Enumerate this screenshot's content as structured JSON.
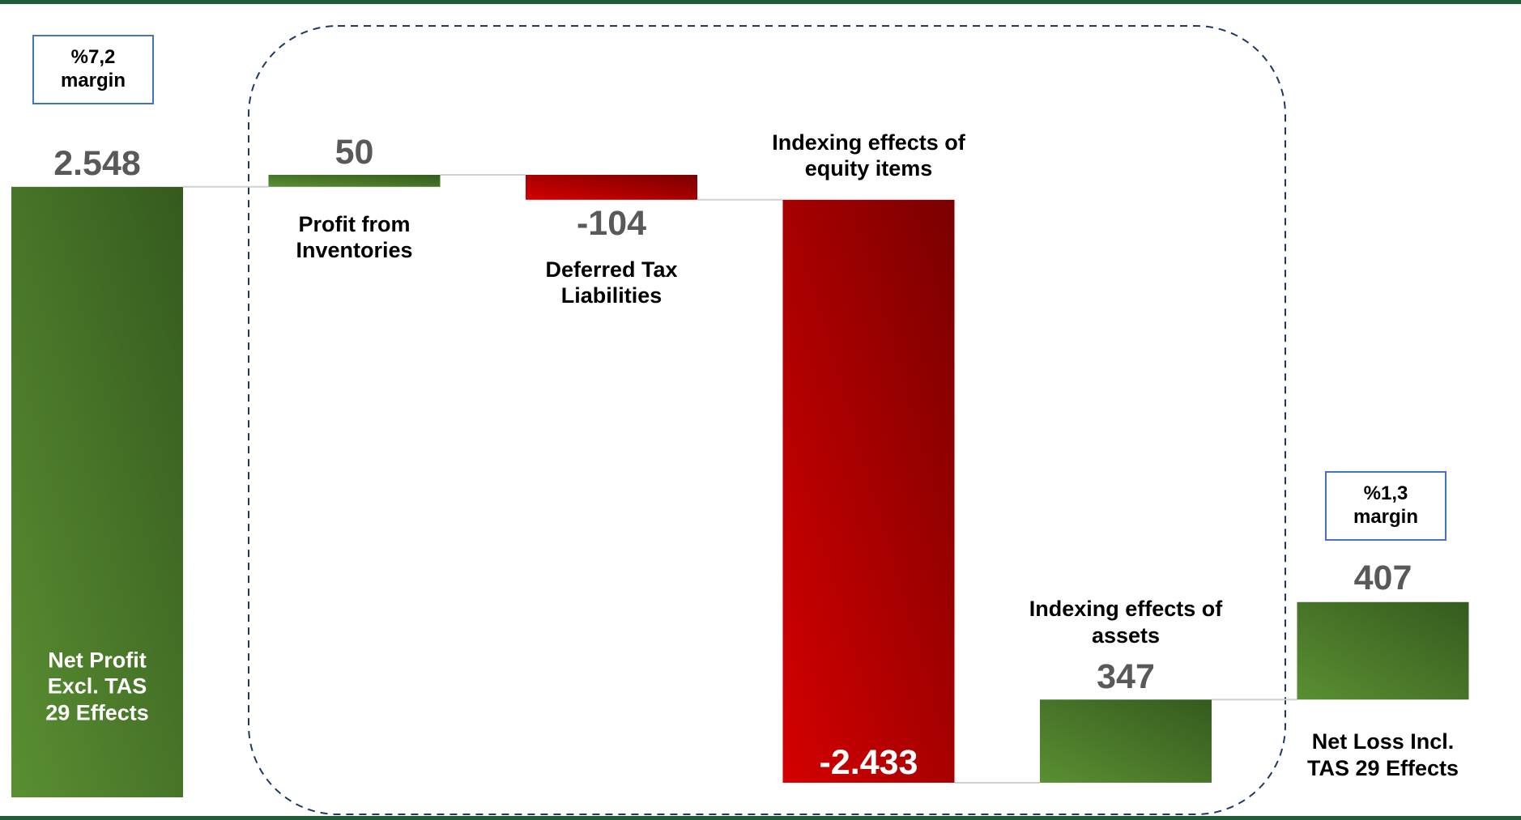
{
  "chart_data": {
    "type": "waterfall",
    "categories": [
      "Net Profit Excl. TAS 29 Effects",
      "Profit from Inventories",
      "Deferred Tax Liabilities",
      "Indexing effects of equity items",
      "Indexing effects of assets",
      "Net Loss Incl. TAS 29 Effects"
    ],
    "values": [
      2548,
      50,
      -104,
      -2433,
      347,
      407
    ],
    "value_labels": [
      "2.548",
      "50",
      "-104",
      "-2.433",
      "347",
      "407"
    ],
    "annotations": [
      "%7,2 margin",
      "%1,3 margin"
    ],
    "colors": {
      "positive": [
        "#5a8f32",
        "#355a1e"
      ],
      "negative": [
        "#d40000",
        "#7a0000"
      ]
    }
  }
}
